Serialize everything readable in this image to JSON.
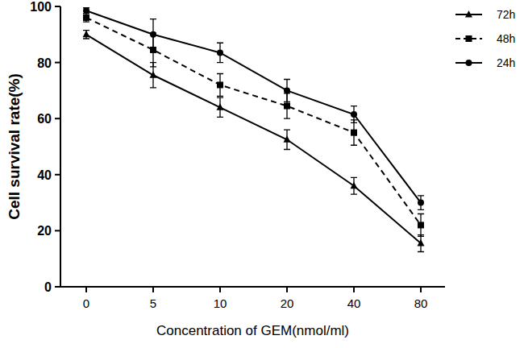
{
  "chart_data": {
    "type": "line",
    "x_label": "Concentration of GEM(nmol/ml)",
    "y_label": "Cell survival rate(%)",
    "categories": [
      "0",
      "5",
      "10",
      "20",
      "40",
      "80"
    ],
    "ylim": [
      0,
      100
    ],
    "yticks": [
      0,
      20,
      40,
      60,
      80,
      100
    ],
    "grid": false,
    "legend": "top-right",
    "series": [
      {
        "name": "72h",
        "color": "#000000",
        "marker": "triangle",
        "line_style": "solid",
        "values": [
          90,
          75.5,
          64,
          52.5,
          36,
          15.5
        ],
        "errors": [
          1.5,
          4.5,
          3.5,
          3.5,
          3,
          3
        ]
      },
      {
        "name": "48h",
        "color": "#000000",
        "marker": "square",
        "line_style": "dashed",
        "values": [
          96,
          84.5,
          72,
          64.5,
          55,
          22
        ],
        "errors": [
          1.5,
          6,
          4,
          4.5,
          4.5,
          4
        ]
      },
      {
        "name": "24h",
        "color": "#000000",
        "marker": "circle",
        "line_style": "solid",
        "values": [
          98.5,
          90,
          83.5,
          70,
          61.5,
          30
        ],
        "errors": [
          1,
          5.5,
          3.5,
          4,
          3,
          2.5
        ]
      }
    ]
  }
}
